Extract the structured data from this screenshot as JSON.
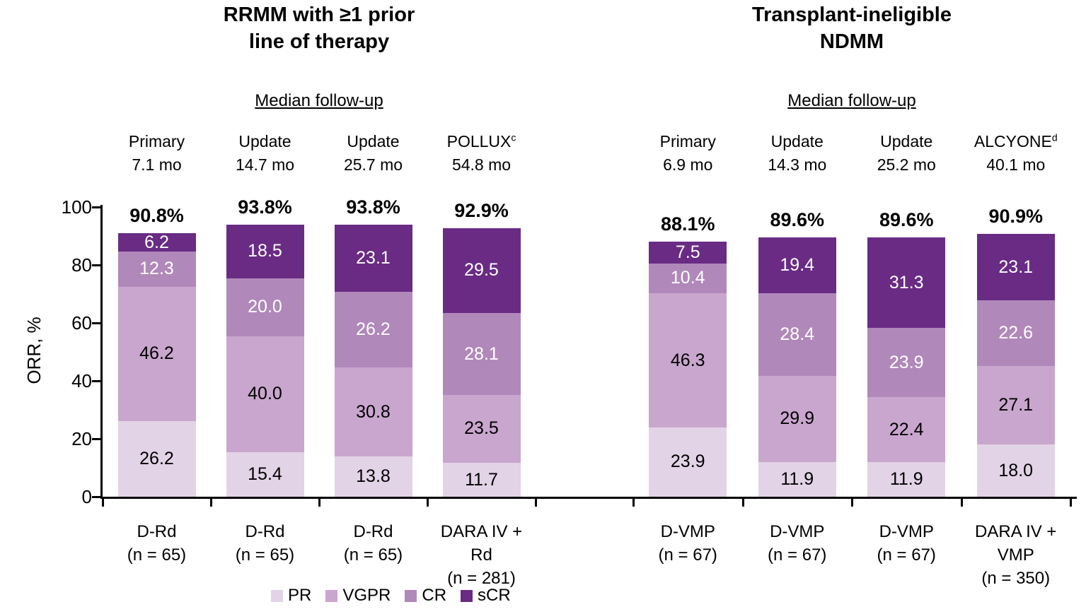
{
  "chart_data": {
    "type": "bar",
    "stacked": true,
    "ylabel": "ORR, %",
    "ylim": [
      0,
      100
    ],
    "yticks": [
      0,
      20,
      40,
      60,
      80,
      100
    ],
    "grid": false,
    "legend_position": "bottom",
    "segments": [
      {
        "key": "PR",
        "color": "#e3d3e7",
        "label_color": "#000000"
      },
      {
        "key": "VGPR",
        "color": "#c9a6ce",
        "label_color": "#000000"
      },
      {
        "key": "CR",
        "color": "#b188ba",
        "label_color": "#ffffff"
      },
      {
        "key": "sCR",
        "color": "#692b84",
        "label_color": "#ffffff"
      }
    ],
    "panels": [
      {
        "title_lines": [
          "RRMM with ≥1 prior",
          "line of therapy"
        ],
        "followup_header": "Median follow-up",
        "bars": [
          {
            "followup": {
              "line1": "Primary",
              "sup": "",
              "line2": "7.1 mo"
            },
            "category_lines": [
              "D-Rd",
              "(n = 65)"
            ],
            "total_label": "90.8%",
            "values": {
              "PR": 26.2,
              "VGPR": 46.2,
              "CR": 12.3,
              "sCR": 6.2
            }
          },
          {
            "followup": {
              "line1": "Update",
              "sup": "",
              "line2": "14.7 mo"
            },
            "category_lines": [
              "D-Rd",
              "(n = 65)"
            ],
            "total_label": "93.8%",
            "values": {
              "PR": 15.4,
              "VGPR": 40.0,
              "CR": 20.0,
              "sCR": 18.5
            }
          },
          {
            "followup": {
              "line1": "Update",
              "sup": "",
              "line2": "25.7 mo"
            },
            "category_lines": [
              "D-Rd",
              "(n = 65)"
            ],
            "total_label": "93.8%",
            "values": {
              "PR": 13.8,
              "VGPR": 30.8,
              "CR": 26.2,
              "sCR": 23.1
            }
          },
          {
            "followup": {
              "line1": "POLLUX",
              "sup": "c",
              "line2": "54.8 mo"
            },
            "category_lines": [
              "DARA IV +",
              "Rd",
              "(n = 281)"
            ],
            "total_label": "92.9%",
            "values": {
              "PR": 11.7,
              "VGPR": 23.5,
              "CR": 28.1,
              "sCR": 29.5
            }
          }
        ]
      },
      {
        "title_lines": [
          "Transplant-ineligible",
          "NDMM"
        ],
        "followup_header": "Median follow-up",
        "bars": [
          {
            "followup": {
              "line1": "Primary",
              "sup": "",
              "line2": "6.9 mo"
            },
            "category_lines": [
              "D-VMP",
              "(n = 67)"
            ],
            "total_label": "88.1%",
            "values": {
              "PR": 23.9,
              "VGPR": 46.3,
              "CR": 10.4,
              "sCR": 7.5
            }
          },
          {
            "followup": {
              "line1": "Update",
              "sup": "",
              "line2": "14.3 mo"
            },
            "category_lines": [
              "D-VMP",
              "(n = 67)"
            ],
            "total_label": "89.6%",
            "values": {
              "PR": 11.9,
              "VGPR": 29.9,
              "CR": 28.4,
              "sCR": 19.4
            }
          },
          {
            "followup": {
              "line1": "Update",
              "sup": "",
              "line2": "25.2 mo"
            },
            "category_lines": [
              "D-VMP",
              "(n = 67)"
            ],
            "total_label": "89.6%",
            "values": {
              "PR": 11.9,
              "VGPR": 22.4,
              "CR": 23.9,
              "sCR": 31.3
            }
          },
          {
            "followup": {
              "line1": "ALCYONE",
              "sup": "d",
              "line2": "40.1 mo"
            },
            "category_lines": [
              "DARA IV +",
              "VMP",
              "(n = 350)"
            ],
            "total_label": "90.9%",
            "values": {
              "PR": 18.0,
              "VGPR": 27.1,
              "CR": 22.6,
              "sCR": 23.1
            }
          }
        ]
      }
    ]
  }
}
